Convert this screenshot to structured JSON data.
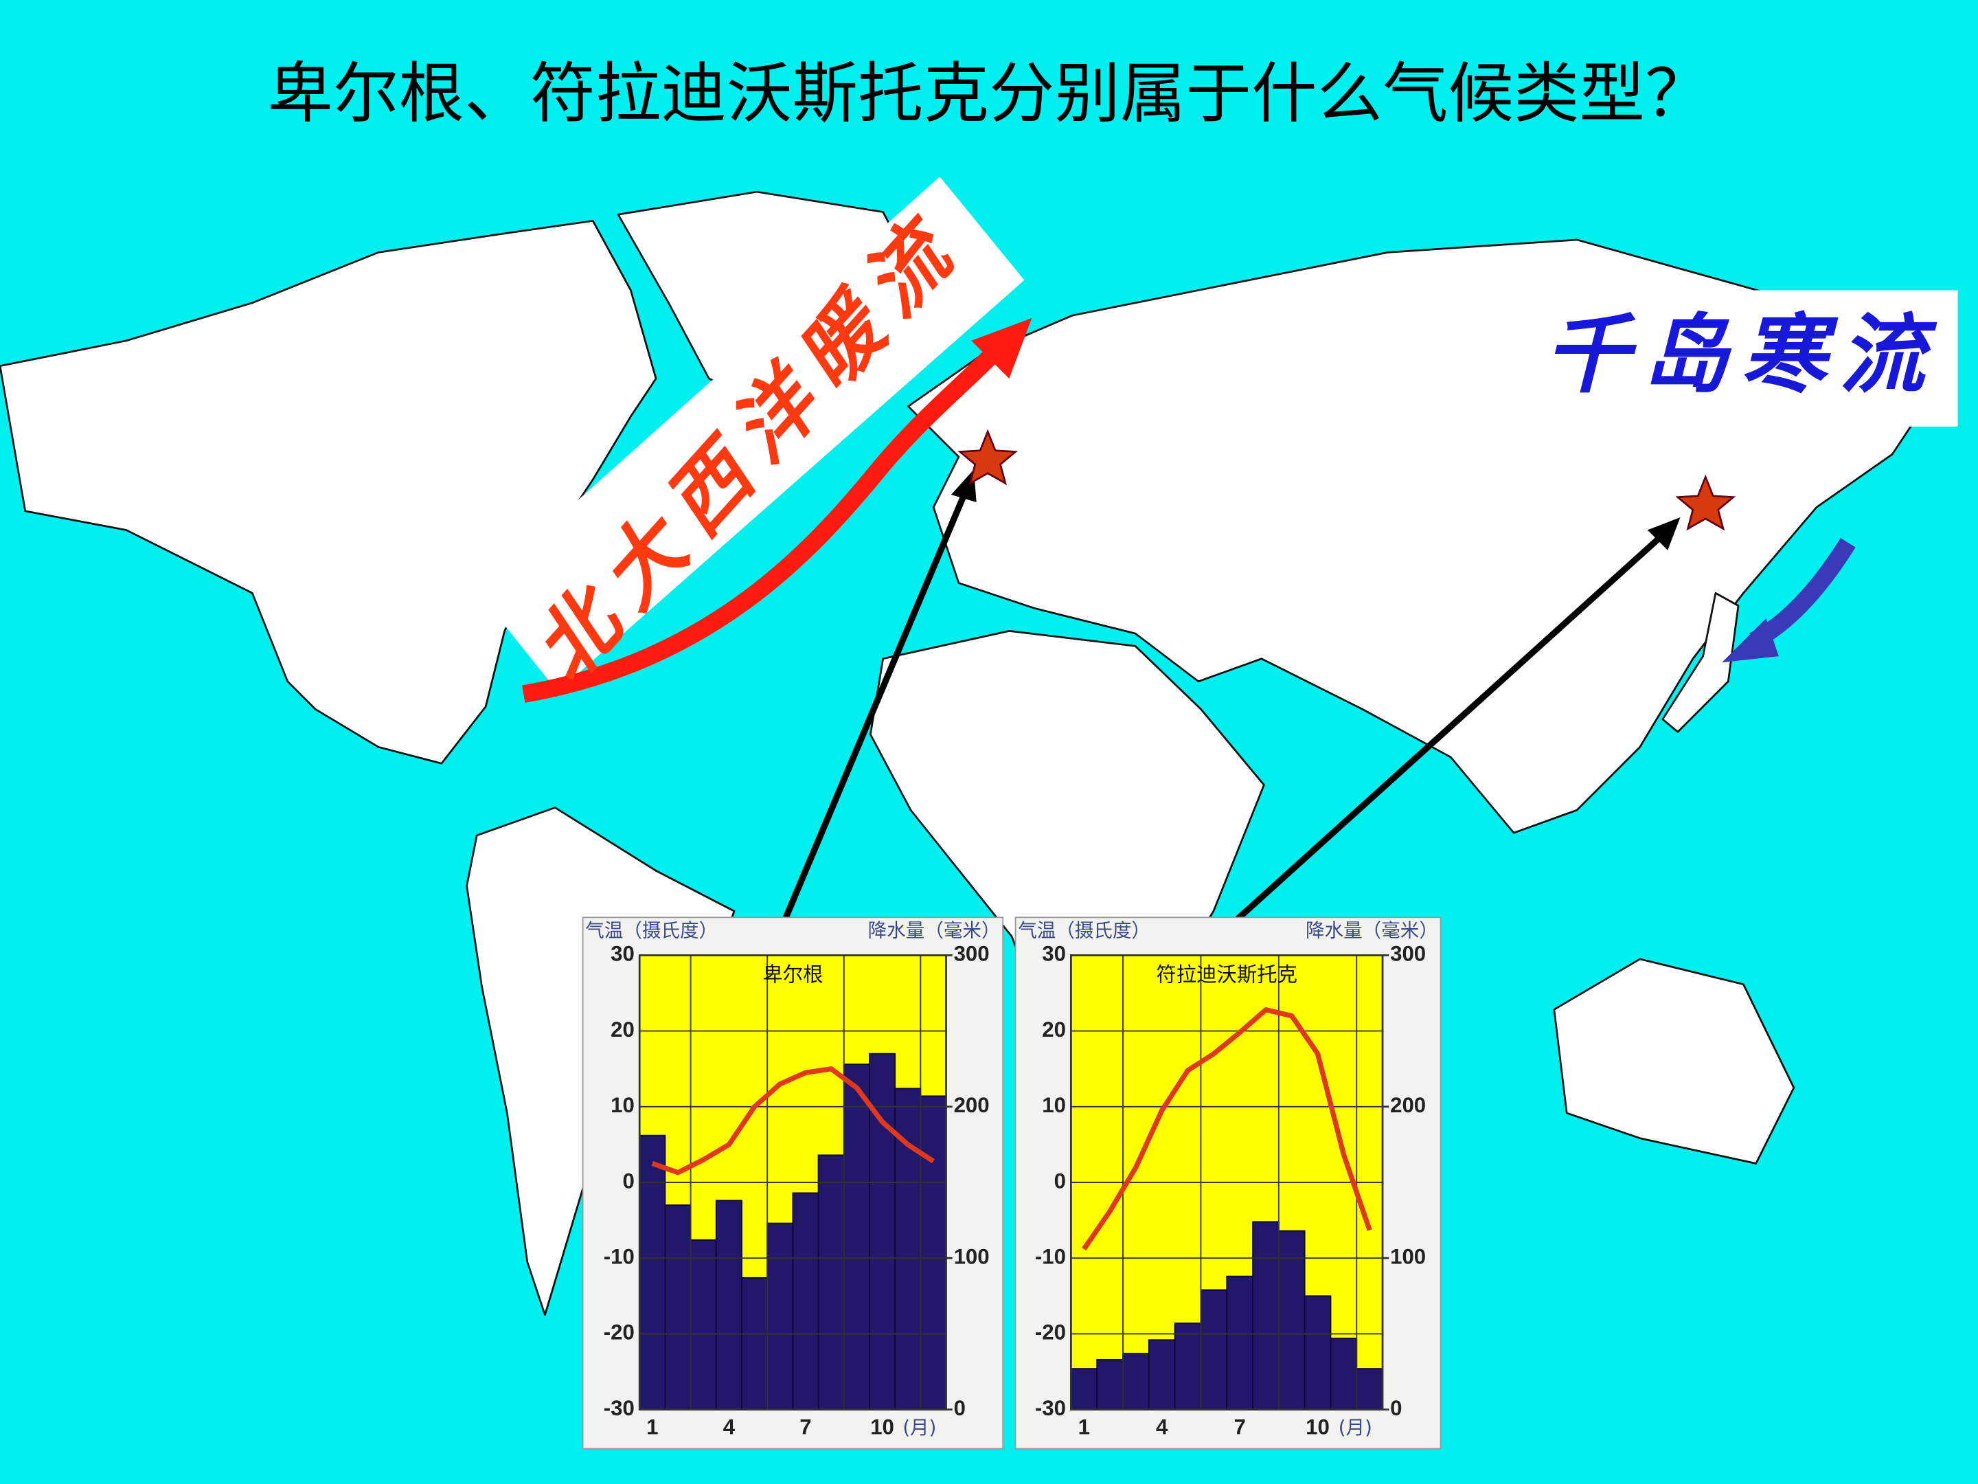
{
  "title": "卑尔根、符拉迪沃斯托克分别属于什么气候类型？",
  "annotations": [
    "北大西洋暖流",
    "千岛寒流"
  ],
  "chart_data": [
    {
      "type": "climate",
      "title": "卑尔根",
      "ylabel": "气温（摄氏度）",
      "y2label": "降水量（毫米）",
      "xlabel": "(月)",
      "categories": [
        "1",
        null,
        null,
        "4",
        null,
        null,
        "7",
        null,
        null,
        "10",
        null,
        null
      ],
      "ylim": [
        -30,
        30
      ],
      "yticks": [
        -30,
        -20,
        -10,
        0,
        10,
        20,
        30
      ],
      "y2lim": [
        0,
        300
      ],
      "y2ticks": [
        0,
        100,
        200,
        300
      ],
      "grid": true,
      "background": "#ffff00",
      "series": [
        {
          "type": "bar",
          "axis": "y2",
          "color": "#22186b",
          "values": [
            181,
            135,
            112,
            138,
            87,
            123,
            143,
            168,
            228,
            235,
            212,
            207
          ]
        },
        {
          "type": "line",
          "color": "#e0381c",
          "values": [
            2.5,
            1.3,
            3,
            5,
            10,
            13,
            14.5,
            15,
            12.5,
            8,
            5,
            2.8
          ]
        }
      ]
    },
    {
      "type": "climate",
      "title": "符拉迪沃斯托克",
      "ylabel": "气温（摄氏度）",
      "y2label": "降水量（毫米）",
      "xlabel": "(月)",
      "categories": [
        "1",
        null,
        null,
        "4",
        null,
        null,
        "7",
        null,
        null,
        "10",
        null,
        null
      ],
      "ylim": [
        -30,
        30
      ],
      "yticks": [
        -30,
        -20,
        -10,
        0,
        10,
        20,
        30
      ],
      "y2lim": [
        0,
        300
      ],
      "y2ticks": [
        0,
        100,
        200,
        300
      ],
      "grid": true,
      "background": "#ffff00",
      "series": [
        {
          "type": "bar",
          "axis": "y2",
          "color": "#22186b",
          "values": [
            27,
            33,
            37,
            46,
            57,
            79,
            88,
            124,
            118,
            75,
            47,
            27
          ]
        },
        {
          "type": "line",
          "color": "#e0381c",
          "values": [
            -8.8,
            -3.8,
            2,
            9.5,
            14.8,
            17,
            19.8,
            22.8,
            22,
            17,
            3.7,
            -6.3
          ]
        }
      ]
    }
  ]
}
